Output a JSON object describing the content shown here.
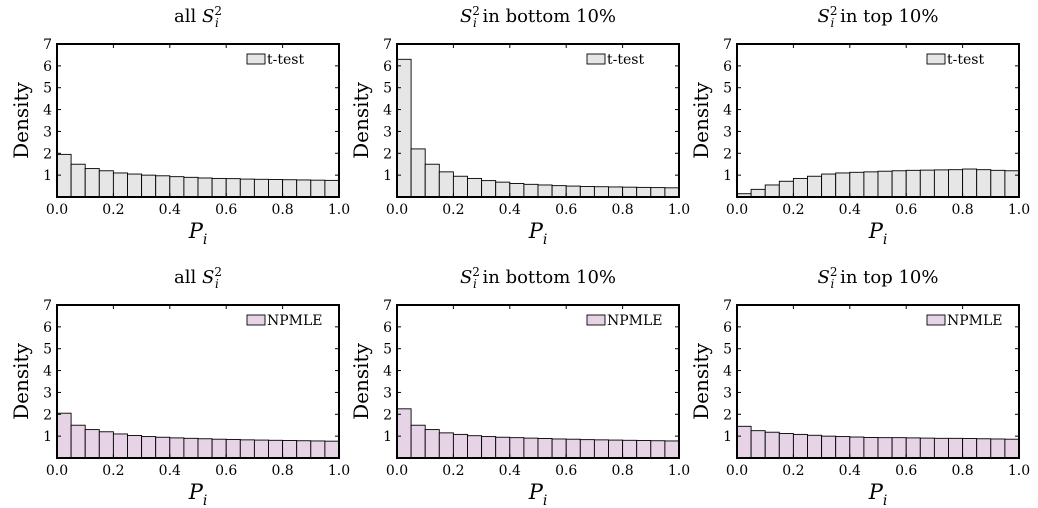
{
  "figure": {
    "rows": 2,
    "cols": 3
  },
  "chart_data": [
    {
      "type": "bar",
      "title_pre": "all ",
      "title_post": "",
      "xlabel": "P",
      "xlabel_sub": "i",
      "ylabel": "Density",
      "xlim": [
        0,
        1
      ],
      "ylim": [
        0,
        7
      ],
      "xticks": [
        "0.0",
        "0.2",
        "0.4",
        "0.6",
        "0.8",
        "1.0"
      ],
      "yticks": [
        "1",
        "2",
        "3",
        "4",
        "5",
        "6",
        "7"
      ],
      "legend": "t-test",
      "legend_position": "top-right",
      "color": "#e6e6e6",
      "bin_width": 0.05,
      "values": [
        1.95,
        1.5,
        1.3,
        1.2,
        1.1,
        1.05,
        1.0,
        0.97,
        0.93,
        0.9,
        0.87,
        0.85,
        0.84,
        0.82,
        0.81,
        0.8,
        0.79,
        0.78,
        0.77,
        0.76
      ]
    },
    {
      "type": "bar",
      "title_pre": "",
      "title_post": " in bottom 10%",
      "xlabel": "P",
      "xlabel_sub": "i",
      "ylabel": "Density",
      "xlim": [
        0,
        1
      ],
      "ylim": [
        0,
        7
      ],
      "xticks": [
        "0.0",
        "0.2",
        "0.4",
        "0.6",
        "0.8",
        "1.0"
      ],
      "yticks": [
        "1",
        "2",
        "3",
        "4",
        "5",
        "6",
        "7"
      ],
      "legend": "t-test",
      "legend_position": "top-right",
      "color": "#e6e6e6",
      "bin_width": 0.05,
      "values": [
        6.3,
        2.2,
        1.5,
        1.15,
        0.95,
        0.85,
        0.75,
        0.68,
        0.62,
        0.58,
        0.55,
        0.52,
        0.5,
        0.48,
        0.47,
        0.46,
        0.45,
        0.44,
        0.43,
        0.42
      ]
    },
    {
      "type": "bar",
      "title_pre": "",
      "title_post": " in top 10%",
      "xlabel": "P",
      "xlabel_sub": "i",
      "ylabel": "Density",
      "xlim": [
        0,
        1
      ],
      "ylim": [
        0,
        7
      ],
      "xticks": [
        "0.0",
        "0.2",
        "0.4",
        "0.6",
        "0.8",
        "1.0"
      ],
      "yticks": [
        "1",
        "2",
        "3",
        "4",
        "5",
        "6",
        "7"
      ],
      "legend": "t-test",
      "legend_position": "top-right",
      "color": "#e6e6e6",
      "bin_width": 0.05,
      "values": [
        0.15,
        0.35,
        0.55,
        0.72,
        0.85,
        0.95,
        1.05,
        1.1,
        1.13,
        1.15,
        1.18,
        1.2,
        1.22,
        1.23,
        1.24,
        1.25,
        1.28,
        1.25,
        1.22,
        1.2
      ]
    },
    {
      "type": "bar",
      "title_pre": "all ",
      "title_post": "",
      "xlabel": "P",
      "xlabel_sub": "i",
      "ylabel": "Density",
      "xlim": [
        0,
        1
      ],
      "ylim": [
        0,
        7
      ],
      "xticks": [
        "0.0",
        "0.2",
        "0.4",
        "0.6",
        "0.8",
        "1.0"
      ],
      "yticks": [
        "1",
        "2",
        "3",
        "4",
        "5",
        "6",
        "7"
      ],
      "legend": "NPMLE",
      "legend_position": "top-right",
      "color": "#e6d3e6",
      "bin_width": 0.05,
      "values": [
        2.05,
        1.5,
        1.3,
        1.2,
        1.1,
        1.03,
        0.98,
        0.95,
        0.92,
        0.9,
        0.88,
        0.86,
        0.85,
        0.83,
        0.82,
        0.81,
        0.8,
        0.79,
        0.78,
        0.77
      ]
    },
    {
      "type": "bar",
      "title_pre": "",
      "title_post": " in bottom 10%",
      "xlabel": "P",
      "xlabel_sub": "i",
      "ylabel": "Density",
      "xlim": [
        0,
        1
      ],
      "ylim": [
        0,
        7
      ],
      "xticks": [
        "0.0",
        "0.2",
        "0.4",
        "0.6",
        "0.8",
        "1.0"
      ],
      "yticks": [
        "1",
        "2",
        "3",
        "4",
        "5",
        "6",
        "7"
      ],
      "legend": "NPMLE",
      "legend_position": "top-right",
      "color": "#e6d3e6",
      "bin_width": 0.05,
      "values": [
        2.25,
        1.5,
        1.3,
        1.15,
        1.08,
        1.02,
        0.98,
        0.95,
        0.93,
        0.91,
        0.89,
        0.87,
        0.86,
        0.84,
        0.83,
        0.82,
        0.81,
        0.8,
        0.79,
        0.78
      ]
    },
    {
      "type": "bar",
      "title_pre": "",
      "title_post": " in top 10%",
      "xlabel": "P",
      "xlabel_sub": "i",
      "ylabel": "Density",
      "xlim": [
        0,
        1
      ],
      "ylim": [
        0,
        7
      ],
      "xticks": [
        "0.0",
        "0.2",
        "0.4",
        "0.6",
        "0.8",
        "1.0"
      ],
      "yticks": [
        "1",
        "2",
        "3",
        "4",
        "5",
        "6",
        "7"
      ],
      "legend": "NPMLE",
      "legend_position": "top-right",
      "color": "#e6d3e6",
      "bin_width": 0.05,
      "values": [
        1.45,
        1.25,
        1.18,
        1.12,
        1.08,
        1.04,
        1.0,
        0.98,
        0.96,
        0.94,
        0.93,
        0.93,
        0.92,
        0.91,
        0.9,
        0.9,
        0.89,
        0.88,
        0.87,
        0.86
      ]
    }
  ]
}
